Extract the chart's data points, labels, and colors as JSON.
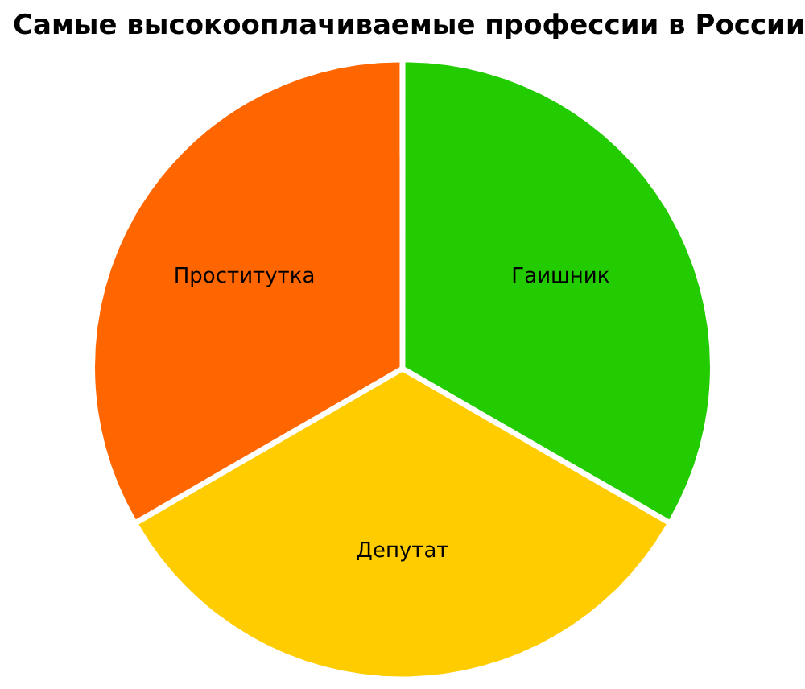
{
  "chart_data": {
    "type": "pie",
    "title": "Самые высокооплачиваемые профессии в России",
    "categories": [
      "Гаишник",
      "Депутат",
      "Проститутка"
    ],
    "values": [
      33.33,
      33.33,
      33.34
    ],
    "colors": [
      "#22cc00",
      "#ffcc00",
      "#ff6600"
    ],
    "legend": false
  }
}
